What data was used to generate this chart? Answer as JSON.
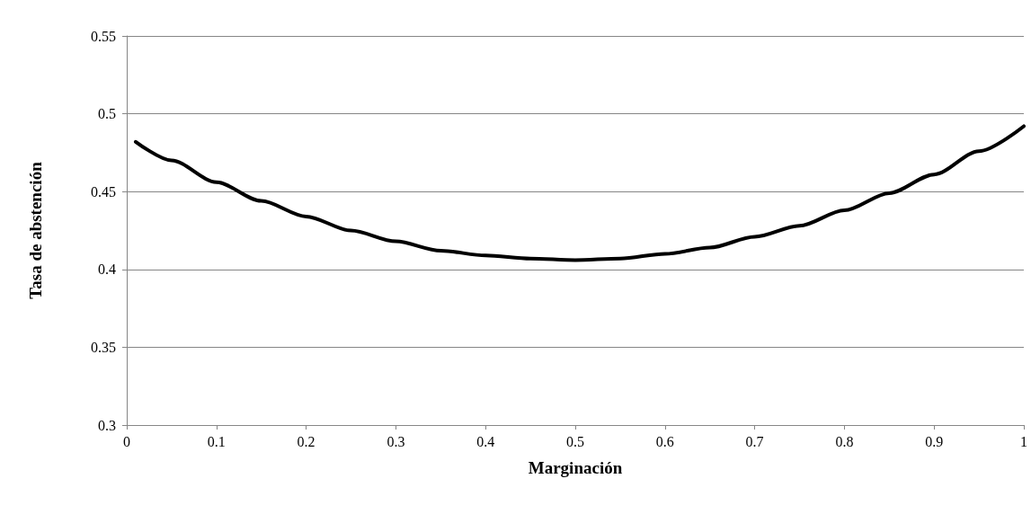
{
  "chart_data": {
    "type": "line",
    "xlabel": "Marginación",
    "ylabel": "Tasa de abstención",
    "x": [
      0.01,
      0.05,
      0.1,
      0.15,
      0.2,
      0.25,
      0.3,
      0.35,
      0.4,
      0.45,
      0.5,
      0.55,
      0.6,
      0.65,
      0.7,
      0.75,
      0.8,
      0.85,
      0.9,
      0.95,
      1
    ],
    "series": [
      {
        "color": "#000000",
        "values": [
          0.482,
          0.47,
          0.456,
          0.444,
          0.434,
          0.425,
          0.418,
          0.412,
          0.409,
          0.407,
          0.406,
          0.407,
          0.41,
          0.414,
          0.421,
          0.428,
          0.438,
          0.449,
          0.461,
          0.476,
          0.492
        ]
      }
    ],
    "xlim": [
      0,
      1
    ],
    "xticks": [
      0,
      0.1,
      0.2,
      0.3,
      0.4,
      0.5,
      0.6,
      0.7,
      0.8,
      0.9,
      1
    ],
    "ylim": [
      0.3,
      0.55
    ],
    "yticks": [
      0.3,
      0.35,
      0.4,
      0.45,
      0.5,
      0.55
    ],
    "grid": "y",
    "marker": "none",
    "line_style": "solid"
  }
}
